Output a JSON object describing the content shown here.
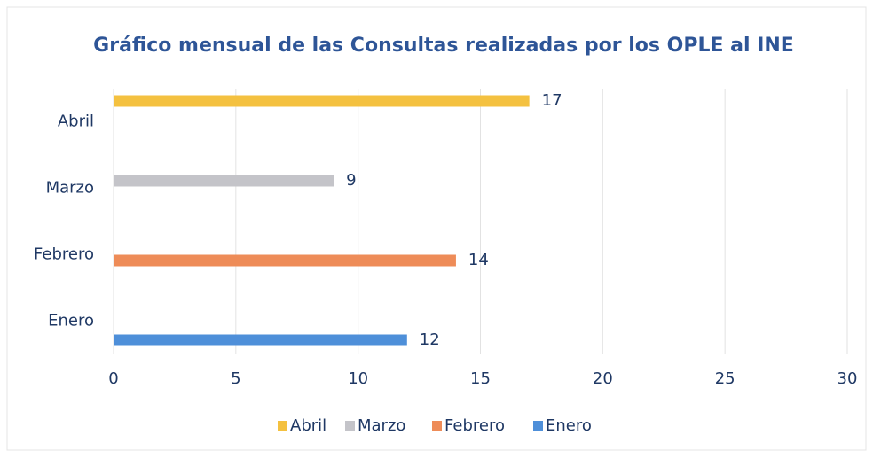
{
  "chart_data": {
    "type": "bar",
    "orientation": "horizontal",
    "title": "Gráfico mensual de las Consultas realizadas por los OPLE al INE",
    "categories": [
      "Enero",
      "Febrero",
      "Marzo",
      "Abril"
    ],
    "series": [
      {
        "name": "Abril",
        "color": "#f4c140",
        "values": [
          null,
          null,
          null,
          17
        ]
      },
      {
        "name": "Marzo",
        "color": "#c4c4c9",
        "values": [
          null,
          null,
          9,
          null
        ]
      },
      {
        "name": "Febrero",
        "color": "#ee8c58",
        "values": [
          null,
          14,
          null,
          null
        ]
      },
      {
        "name": "Enero",
        "color": "#4e8fd9",
        "values": [
          12,
          null,
          null,
          null
        ]
      }
    ],
    "xlim": [
      0,
      30
    ],
    "xticks": [
      0,
      5,
      10,
      15,
      20,
      25,
      30
    ],
    "grid": true,
    "legend": "bottom"
  }
}
